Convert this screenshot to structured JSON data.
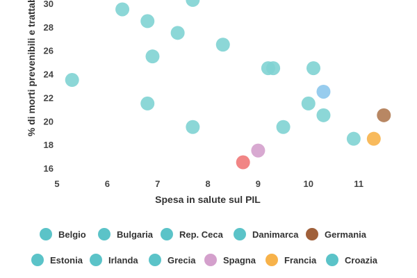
{
  "chart_data": {
    "type": "scatter",
    "xlabel": "Spesa in salute sul PIL",
    "ylabel": "% di morti prevenibili e trattabili",
    "xlim": [
      5,
      11.8
    ],
    "ylim": [
      15,
      30.5
    ],
    "x_ticks": [
      5,
      6,
      7,
      8,
      9,
      10,
      11
    ],
    "y_ticks": [
      16,
      18,
      20,
      22,
      24,
      26,
      28,
      30
    ],
    "grid": false,
    "legend_position": "bottom",
    "default_color": "#5bc3c8",
    "legend": [
      {
        "label": "Belgio",
        "color": "#5bc3c8"
      },
      {
        "label": "Bulgaria",
        "color": "#5bc3c8"
      },
      {
        "label": "Rep. Ceca",
        "color": "#5bc3c8"
      },
      {
        "label": "Danimarca",
        "color": "#5bc3c8"
      },
      {
        "label": "Germania",
        "color": "#a0603a"
      },
      {
        "label": "Estonia",
        "color": "#5bc3c8"
      },
      {
        "label": "Irlanda",
        "color": "#5bc3c8"
      },
      {
        "label": "Grecia",
        "color": "#5bc3c8"
      },
      {
        "label": "Spagna",
        "color": "#d4a0cc"
      },
      {
        "label": "Francia",
        "color": "#f7b24a"
      },
      {
        "label": "Croazia",
        "color": "#5bc3c8"
      }
    ],
    "points": [
      {
        "x": 5.3,
        "y": 23.5,
        "color": "#7fd3d3"
      },
      {
        "x": 6.3,
        "y": 29.5,
        "color": "#7fd3d3"
      },
      {
        "x": 6.8,
        "y": 28.5,
        "color": "#7fd3d3"
      },
      {
        "x": 6.8,
        "y": 21.5,
        "color": "#7fd3d3"
      },
      {
        "x": 6.9,
        "y": 25.5,
        "color": "#7fd3d3"
      },
      {
        "x": 7.4,
        "y": 27.5,
        "color": "#7fd3d3"
      },
      {
        "x": 7.7,
        "y": 30.3,
        "color": "#7fd3d3"
      },
      {
        "x": 7.7,
        "y": 19.5,
        "color": "#7fd3d3"
      },
      {
        "x": 8.3,
        "y": 26.5,
        "color": "#7fd3d3"
      },
      {
        "x": 8.7,
        "y": 16.5,
        "color": "#f07878"
      },
      {
        "x": 9.0,
        "y": 17.5,
        "color": "#d4a0cc"
      },
      {
        "x": 9.2,
        "y": 24.5,
        "color": "#7fd3d3"
      },
      {
        "x": 9.3,
        "y": 24.5,
        "color": "#7fd3d3"
      },
      {
        "x": 9.5,
        "y": 19.5,
        "color": "#7fd3d3"
      },
      {
        "x": 10.0,
        "y": 21.5,
        "color": "#7fd3d3"
      },
      {
        "x": 10.1,
        "y": 24.5,
        "color": "#7fd3d3"
      },
      {
        "x": 10.3,
        "y": 22.5,
        "color": "#8cc7ec"
      },
      {
        "x": 10.3,
        "y": 20.5,
        "color": "#7fd3d3"
      },
      {
        "x": 10.9,
        "y": 18.5,
        "color": "#7fd3d3"
      },
      {
        "x": 11.3,
        "y": 18.5,
        "color": "#f7b24a"
      },
      {
        "x": 11.5,
        "y": 20.5,
        "color": "#b07a52"
      }
    ]
  }
}
